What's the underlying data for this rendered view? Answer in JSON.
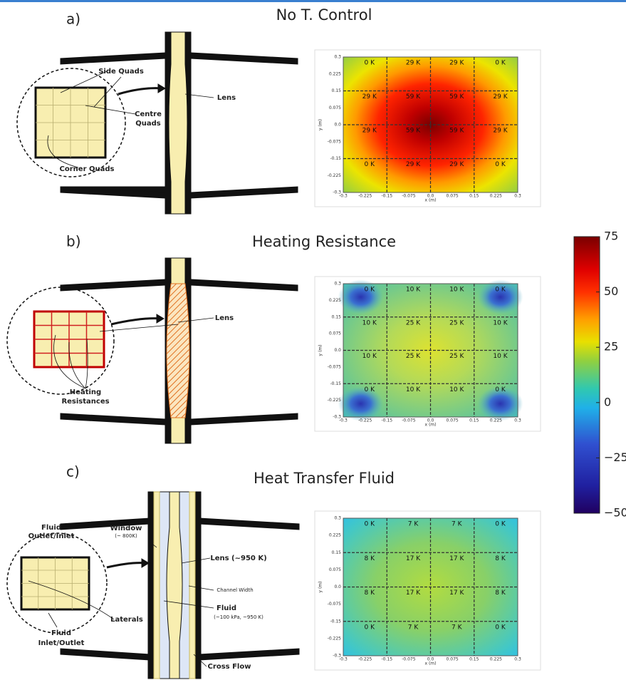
{
  "panels": [
    {
      "letter": "a)",
      "title": "No T. Control",
      "labels": [
        [
          "Side Quads"
        ],
        [
          "Centre",
          "Quads"
        ],
        [
          "Lens"
        ],
        [
          "Corner Quads"
        ]
      ],
      "cell_labels": [
        [
          "0 K",
          "29 K",
          "29 K",
          "0 K"
        ],
        [
          "29 K",
          "59 K",
          "59 K",
          "29 K"
        ],
        [
          "29 K",
          "59 K",
          "59 K",
          "29 K"
        ],
        [
          "0 K",
          "29 K",
          "29 K",
          "0 K"
        ]
      ]
    },
    {
      "letter": "b)",
      "title": "Heating Resistance",
      "labels": [
        [
          "Lens"
        ],
        [
          "Heating",
          "Resistances"
        ]
      ],
      "cell_labels": [
        [
          "0 K",
          "10 K",
          "10 K",
          "0 K"
        ],
        [
          "10 K",
          "25 K",
          "25 K",
          "10 K"
        ],
        [
          "10 K",
          "25 K",
          "25 K",
          "10 K"
        ],
        [
          "0 K",
          "10 K",
          "10 K",
          "0 K"
        ]
      ]
    },
    {
      "letter": "c)",
      "title": "Heat Transfer Fluid",
      "labels": [
        [
          "Fluid",
          "Outlet/Inlet"
        ],
        [
          "Window",
          "(~ 800K)"
        ],
        [
          "Lens (~950 K)"
        ],
        [
          "Channel Width"
        ],
        [
          "Fluid",
          "(~100 kPa, ~950 K)"
        ],
        [
          "Laterals"
        ],
        [
          "Fluid",
          "Inlet/Outlet"
        ],
        [
          "Cross Flow"
        ]
      ],
      "cell_labels": [
        [
          "0 K",
          "7 K",
          "7 K",
          "0 K"
        ],
        [
          "8 K",
          "17 K",
          "17 K",
          "8 K"
        ],
        [
          "8 K",
          "17 K",
          "17 K",
          "8 K"
        ],
        [
          "0 K",
          "7 K",
          "7 K",
          "0 K"
        ]
      ]
    }
  ],
  "heatmap_axes": {
    "xlabel": "x (m)",
    "ylabel": "y (m)",
    "xticks": [
      "-0.3",
      "-0.225",
      "-0.15",
      "-0.075",
      "0.0",
      "0.075",
      "0.15",
      "0.225",
      "0.3"
    ],
    "yticks": [
      "0.3",
      "0.225",
      "0.15",
      "0.075",
      "0.0",
      "-0.075",
      "-0.15",
      "-0.225",
      "-0.3"
    ]
  },
  "colorbar": {
    "range": [
      -50,
      75
    ],
    "ticks": [
      75,
      50,
      25,
      0,
      {
        "value": -25,
        "label": "−25"
      },
      {
        "value": -50,
        "label": "−50"
      }
    ]
  }
}
